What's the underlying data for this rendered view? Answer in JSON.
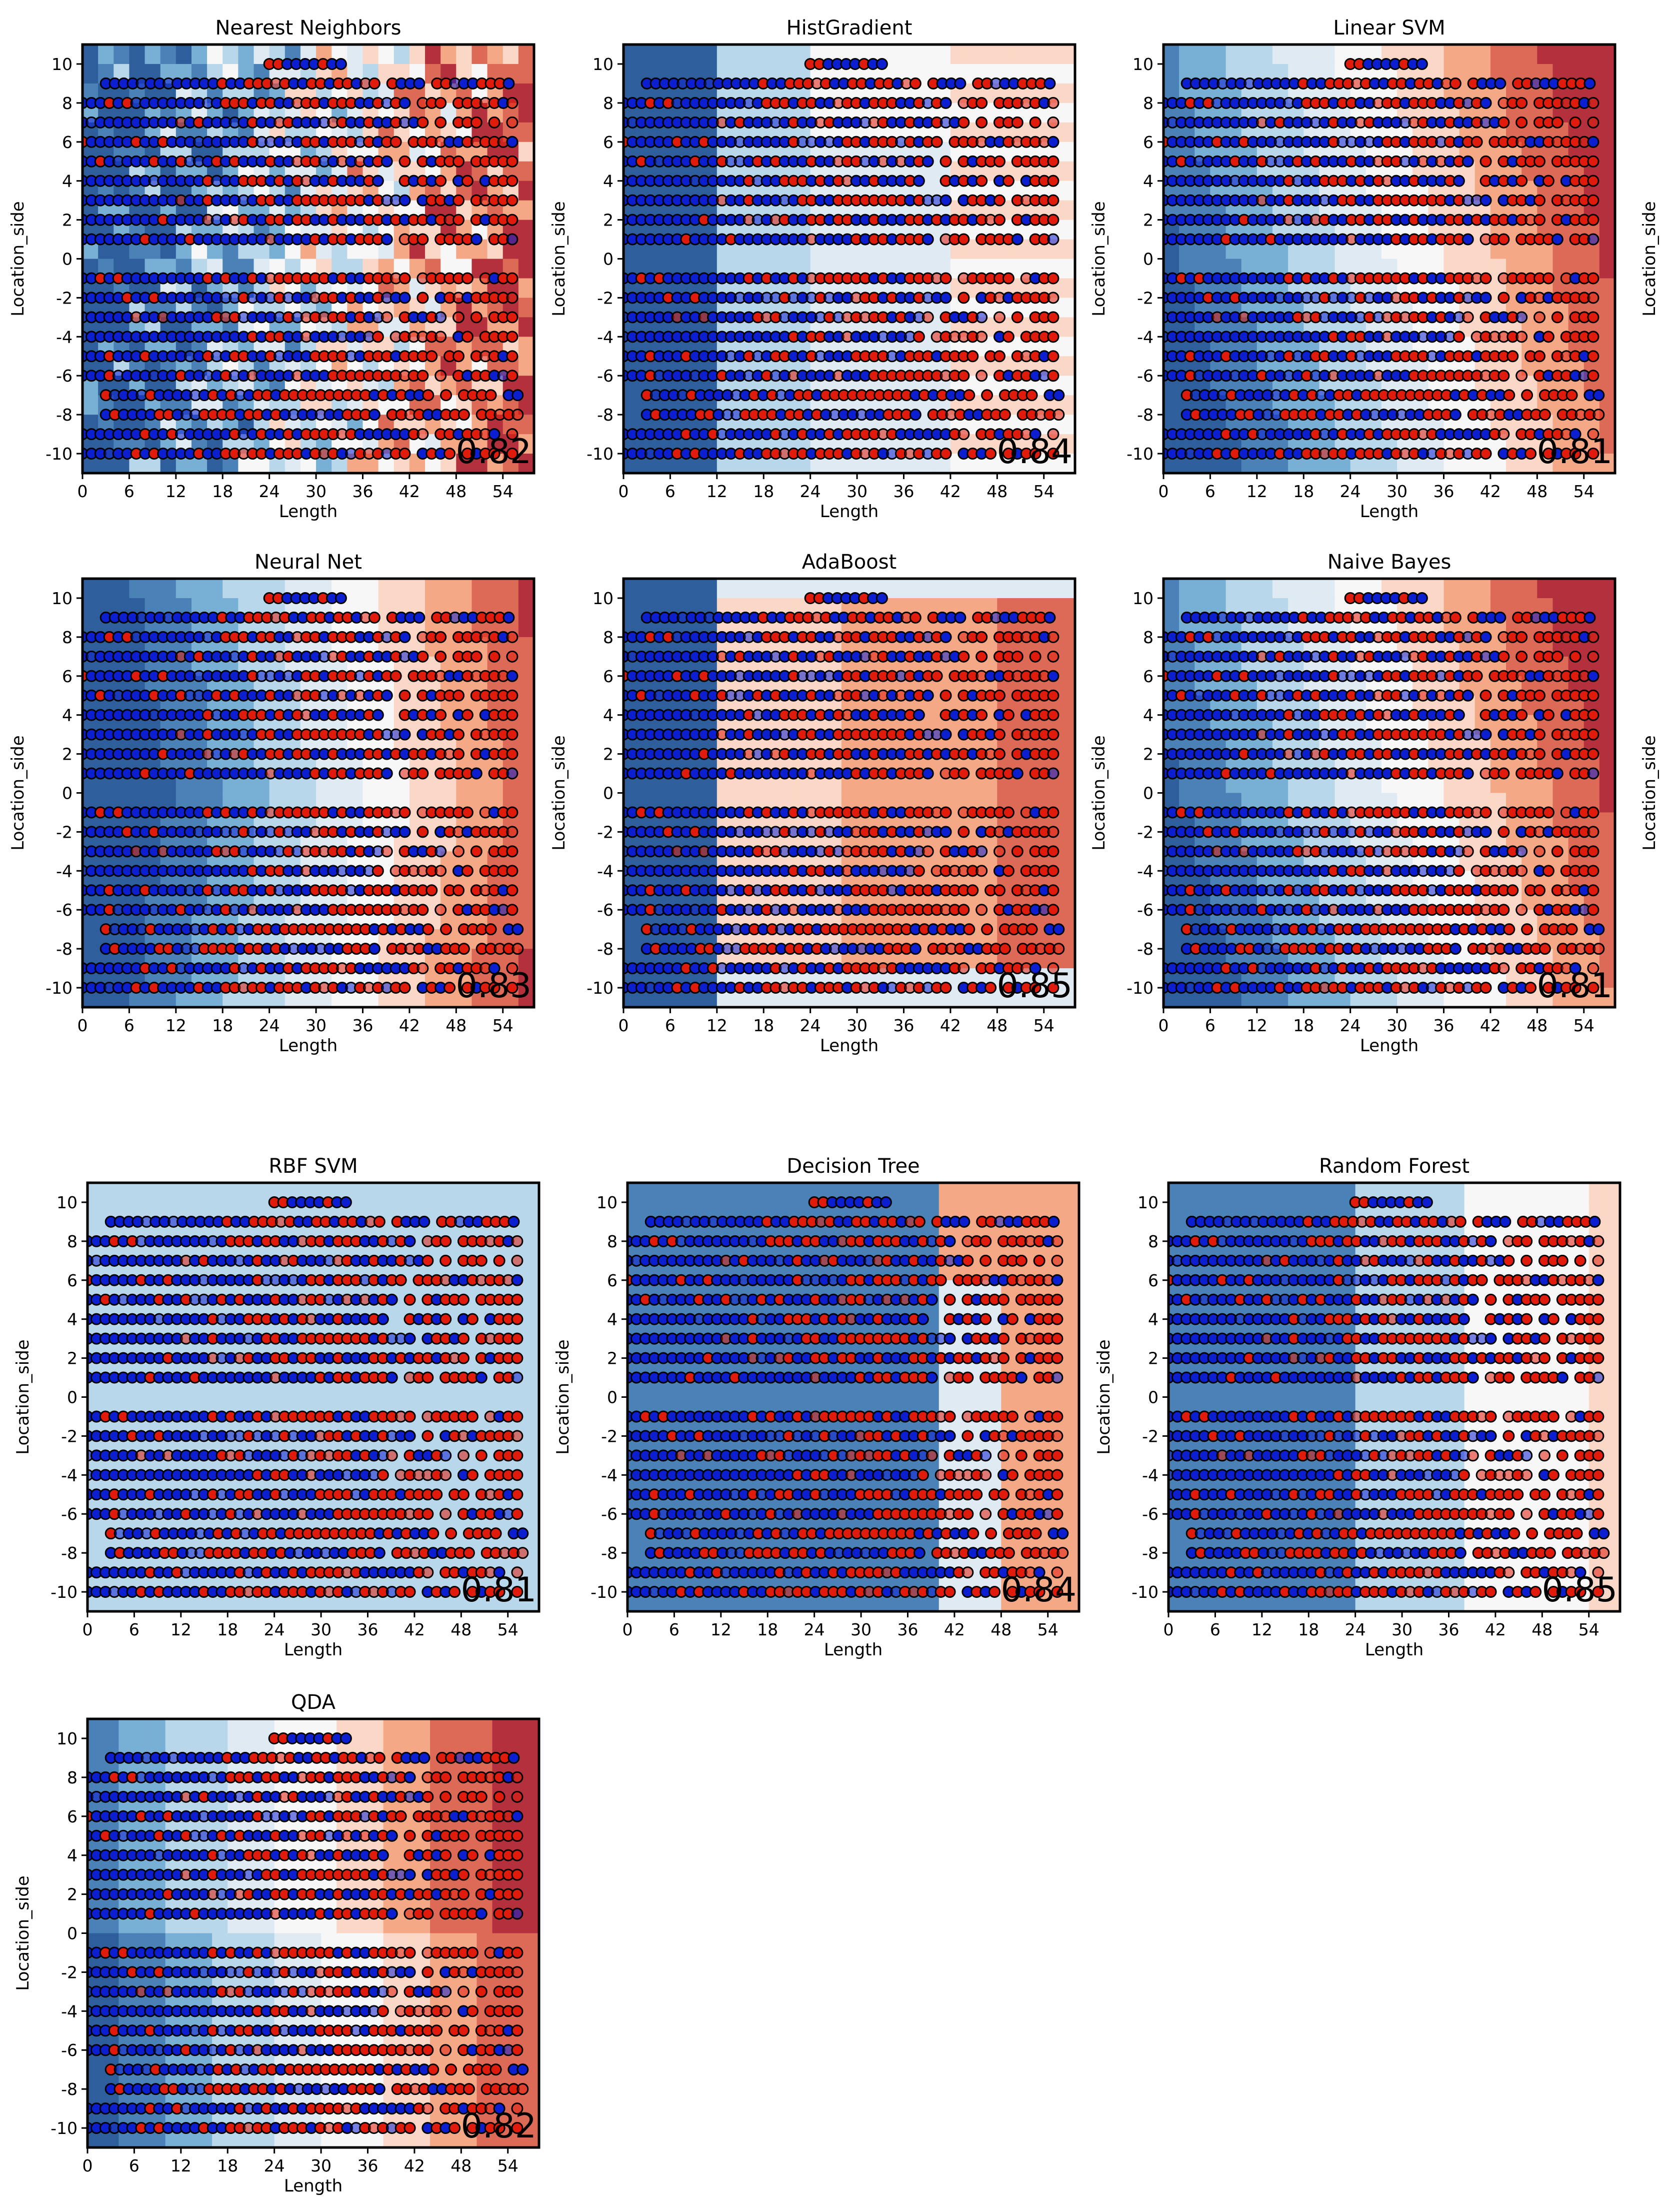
{
  "figure": {
    "description": "Grid of classifier decision-boundary plots on Length vs Location_side"
  },
  "chart_data": [
    {
      "type": "scatter",
      "title": "Nearest Neighbors",
      "xlabel": "Length",
      "ylabel": "Location_side",
      "score": "0.82",
      "xlim": [
        0,
        58
      ],
      "ylim": [
        -11,
        11
      ],
      "xticks": [
        0,
        6,
        12,
        18,
        24,
        30,
        36,
        42,
        48,
        54
      ],
      "yticks": [
        -10,
        -8,
        -6,
        -4,
        -2,
        0,
        2,
        4,
        6,
        8,
        10
      ],
      "boundary": "knn",
      "grid": false
    },
    {
      "type": "scatter",
      "title": "HistGradient",
      "xlabel": "Length",
      "ylabel": "Location_side",
      "score": "0.84",
      "xlim": [
        0,
        58
      ],
      "ylim": [
        -11,
        11
      ],
      "xticks": [
        0,
        6,
        12,
        18,
        24,
        30,
        36,
        42,
        48,
        54
      ],
      "yticks": [
        -10,
        -8,
        -6,
        -4,
        -2,
        0,
        2,
        4,
        6,
        8,
        10
      ],
      "boundary": "blocks",
      "grid": false
    },
    {
      "type": "scatter",
      "title": "Linear SVM",
      "xlabel": "Length",
      "ylabel": "Location_side",
      "score": "0.81",
      "xlim": [
        0,
        58
      ],
      "ylim": [
        -11,
        11
      ],
      "xticks": [
        0,
        6,
        12,
        18,
        24,
        30,
        36,
        42,
        48,
        54
      ],
      "yticks": [
        -10,
        -8,
        -6,
        -4,
        -2,
        0,
        2,
        4,
        6,
        8,
        10
      ],
      "boundary": "linear",
      "grid": false
    },
    {
      "type": "scatter",
      "title": "Neural Net",
      "xlabel": "Length",
      "ylabel": "Location_side",
      "score": "0.83",
      "xlim": [
        0,
        58
      ],
      "ylim": [
        -11,
        11
      ],
      "xticks": [
        0,
        6,
        12,
        18,
        24,
        30,
        36,
        42,
        48,
        54
      ],
      "yticks": [
        -10,
        -8,
        -6,
        -4,
        -2,
        0,
        2,
        4,
        6,
        8,
        10
      ],
      "boundary": "smooth",
      "grid": false
    },
    {
      "type": "scatter",
      "title": "AdaBoost",
      "xlabel": "Length",
      "ylabel": "Location_side",
      "score": "0.85",
      "xlim": [
        0,
        58
      ],
      "ylim": [
        -11,
        11
      ],
      "xticks": [
        0,
        6,
        12,
        18,
        24,
        30,
        36,
        42,
        48,
        54
      ],
      "yticks": [
        -10,
        -8,
        -6,
        -4,
        -2,
        0,
        2,
        4,
        6,
        8,
        10
      ],
      "boundary": "ada",
      "grid": false
    },
    {
      "type": "scatter",
      "title": "Naive Bayes",
      "xlabel": "Length",
      "ylabel": "Location_side",
      "score": "0.81",
      "xlim": [
        0,
        58
      ],
      "ylim": [
        -11,
        11
      ],
      "xticks": [
        0,
        6,
        12,
        18,
        24,
        30,
        36,
        42,
        48,
        54
      ],
      "yticks": [
        -10,
        -8,
        -6,
        -4,
        -2,
        0,
        2,
        4,
        6,
        8,
        10
      ],
      "boundary": "linear",
      "grid": false
    },
    {
      "type": "scatter",
      "title": "RBF SVM",
      "xlabel": "Length",
      "ylabel": "Location_side",
      "score": "0.81",
      "xlim": [
        0,
        58
      ],
      "ylim": [
        -11,
        11
      ],
      "xticks": [
        0,
        6,
        12,
        18,
        24,
        30,
        36,
        42,
        48,
        54
      ],
      "yticks": [
        -10,
        -8,
        -6,
        -4,
        -2,
        0,
        2,
        4,
        6,
        8,
        10
      ],
      "boundary": "flat",
      "grid": false
    },
    {
      "type": "scatter",
      "title": "Decision Tree",
      "xlabel": "Length",
      "ylabel": "Location_side",
      "score": "0.84",
      "xlim": [
        0,
        58
      ],
      "ylim": [
        -11,
        11
      ],
      "xticks": [
        0,
        6,
        12,
        18,
        24,
        30,
        36,
        42,
        48,
        54
      ],
      "yticks": [
        -10,
        -8,
        -6,
        -4,
        -2,
        0,
        2,
        4,
        6,
        8,
        10
      ],
      "boundary": "tree",
      "grid": false
    },
    {
      "type": "scatter",
      "title": "Random Forest",
      "xlabel": "Length",
      "ylabel": "Location_side",
      "score": "0.85",
      "xlim": [
        0,
        58
      ],
      "ylim": [
        -11,
        11
      ],
      "xticks": [
        0,
        6,
        12,
        18,
        24,
        30,
        36,
        42,
        48,
        54
      ],
      "yticks": [
        -10,
        -8,
        -6,
        -4,
        -2,
        0,
        2,
        4,
        6,
        8,
        10
      ],
      "boundary": "forest",
      "grid": false
    },
    {
      "type": "scatter",
      "title": "QDA",
      "xlabel": "Length",
      "ylabel": "Location_side",
      "score": "0.82",
      "xlim": [
        0,
        58
      ],
      "ylim": [
        -11,
        11
      ],
      "xticks": [
        0,
        6,
        12,
        18,
        24,
        30,
        36,
        42,
        48,
        54
      ],
      "yticks": [
        -10,
        -8,
        -6,
        -4,
        -2,
        0,
        2,
        4,
        6,
        8,
        10
      ],
      "boundary": "qda",
      "grid": false
    }
  ],
  "colors": {
    "class_negative": "#0b1fd0",
    "class_positive": "#e01b0b",
    "point_edge": "#000000",
    "cmap": [
      "#2e5f9c",
      "#4a82b7",
      "#78afd4",
      "#b9d7ea",
      "#dfeaf3",
      "#f7f7f7",
      "#fbd7c7",
      "#f4a886",
      "#dd6a57",
      "#b3303c"
    ]
  }
}
